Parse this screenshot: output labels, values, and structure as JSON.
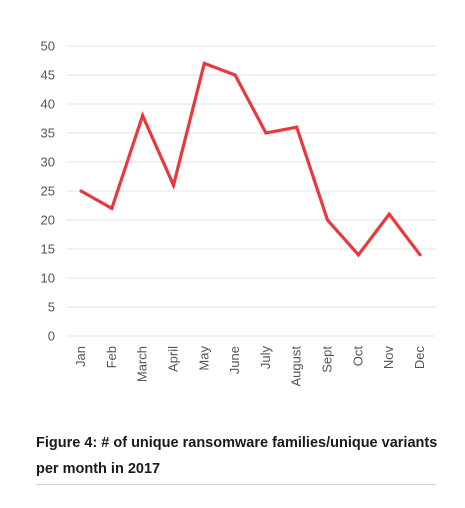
{
  "chart_data": {
    "type": "line",
    "categories": [
      "Jan",
      "Feb",
      "March",
      "April",
      "May",
      "June",
      "July",
      "August",
      "Sept",
      "Oct",
      "Nov",
      "Dec"
    ],
    "values": [
      25,
      22,
      38,
      26,
      47,
      45,
      35,
      36,
      20,
      14,
      21,
      14
    ],
    "ylim": [
      0,
      50
    ],
    "yticks": [
      "0",
      "5",
      "10",
      "15",
      "20",
      "25",
      "30",
      "35",
      "40",
      "45",
      "50"
    ],
    "grid": true,
    "line_color": "#e8393e",
    "grid_color": "#e3e3e3"
  },
  "caption": {
    "line1": "Figure 4: # of unique ransomware families/unique variants",
    "line2": "per month in 2017"
  }
}
